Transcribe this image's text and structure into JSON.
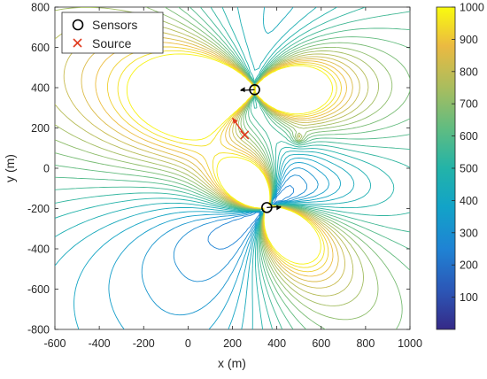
{
  "chart_data": {
    "type": "contour",
    "xlabel": "x (m)",
    "ylabel": "y (m)",
    "xlim": [
      -600,
      1000
    ],
    "ylim": [
      -800,
      800
    ],
    "xticks": [
      -600,
      -400,
      -200,
      0,
      200,
      400,
      600,
      800,
      1000
    ],
    "yticks": [
      -800,
      -600,
      -400,
      -200,
      0,
      200,
      400,
      600,
      800
    ],
    "colorbar": {
      "range": [
        0,
        1000
      ],
      "ticks": [
        100,
        200,
        300,
        400,
        500,
        600,
        700,
        800,
        900,
        1000
      ],
      "colormap": "parula"
    },
    "legend": {
      "placement": "top-left",
      "entries": [
        {
          "label": "Sensors",
          "marker": "circle",
          "color": "#000000"
        },
        {
          "label": "Source",
          "marker": "x",
          "color": "#e03a1e"
        }
      ]
    },
    "sensors": [
      {
        "x": 300,
        "y": 390,
        "direction": "west"
      },
      {
        "x": 355,
        "y": -195,
        "direction": "east"
      }
    ],
    "source": {
      "x": 255,
      "y": 165
    },
    "source_arrow": {
      "from": [
        255,
        165
      ],
      "to": [
        200,
        250
      ]
    },
    "hotspots": [
      {
        "x": 500,
        "y": 150,
        "level": "high"
      },
      {
        "x": 470,
        "y": 130,
        "level": "high"
      }
    ]
  }
}
